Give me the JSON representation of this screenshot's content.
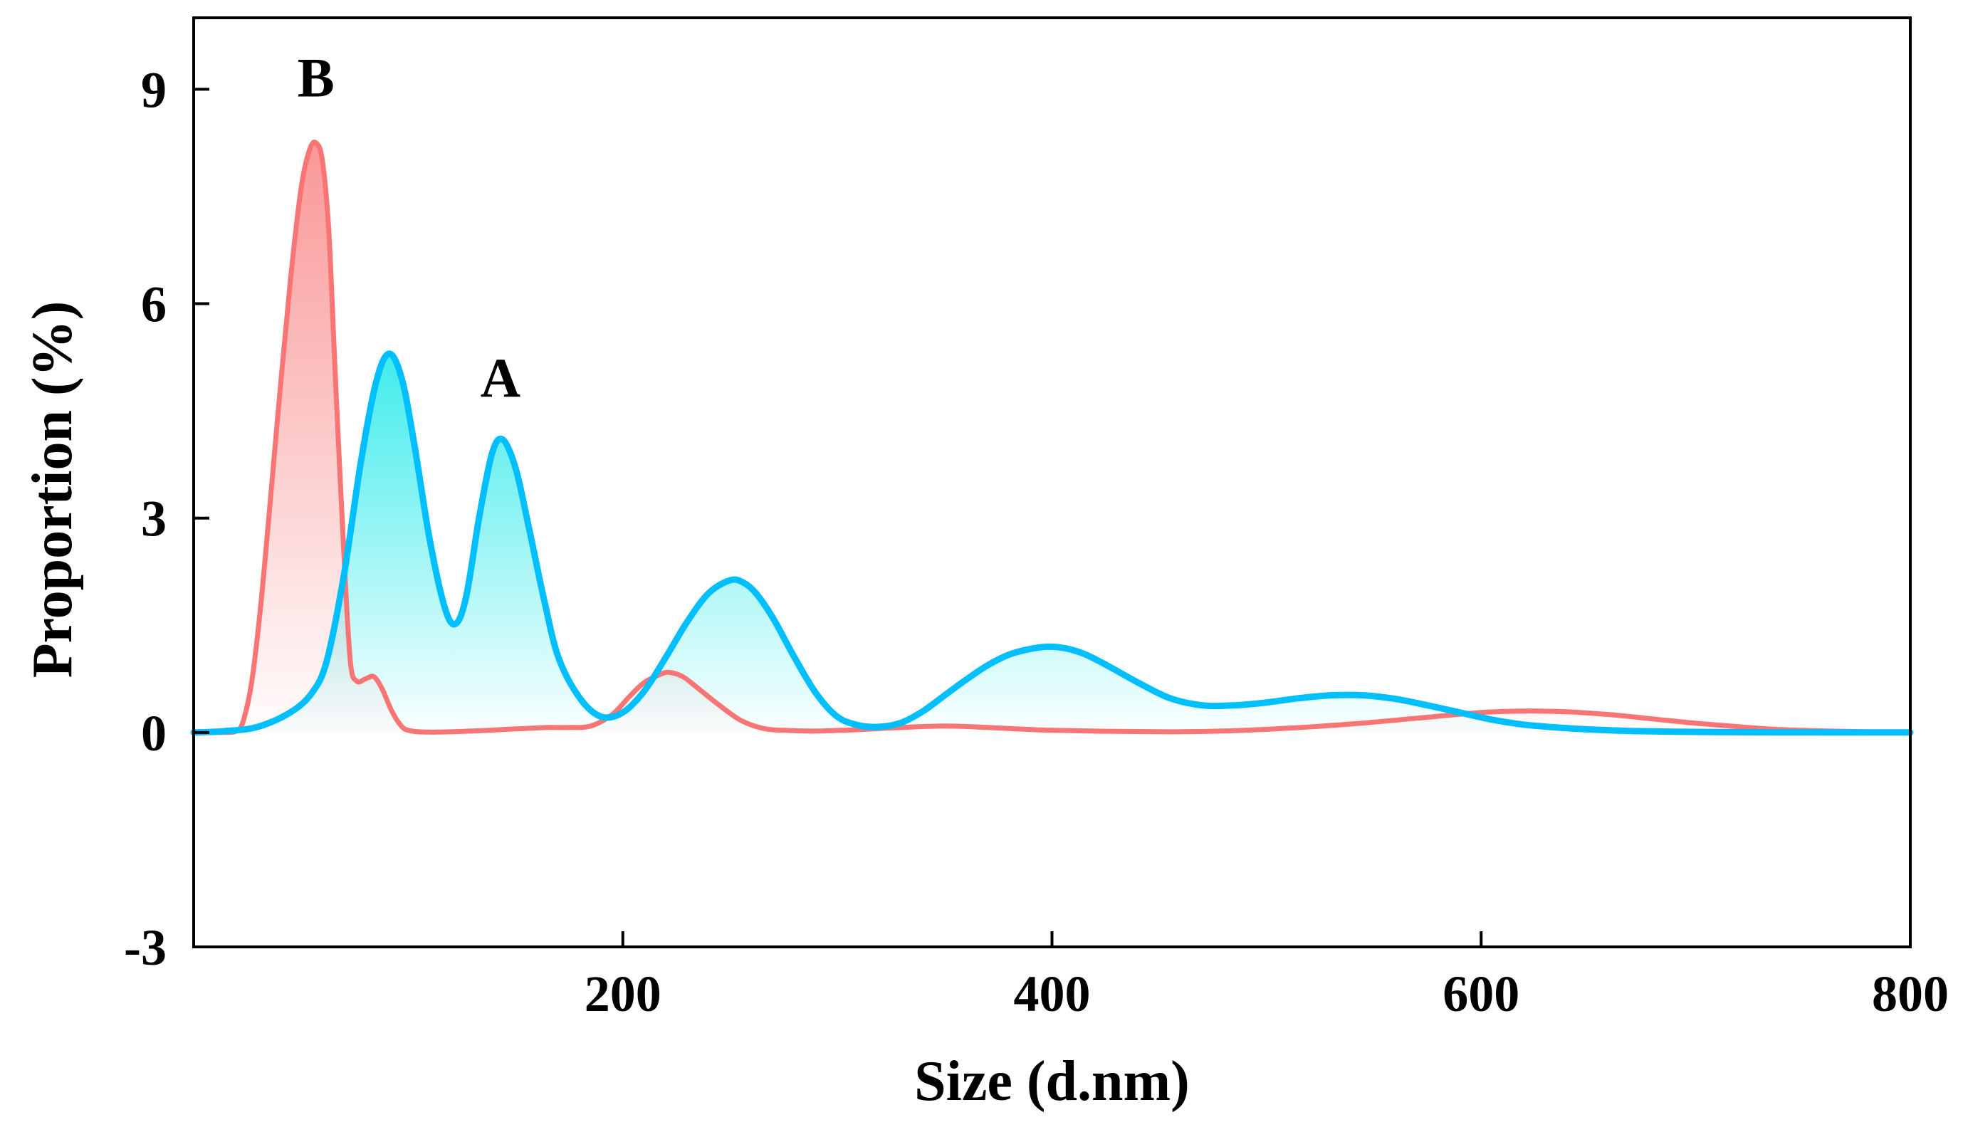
{
  "chart_data": {
    "type": "area",
    "title": "",
    "xlabel": "Size (d.nm)",
    "ylabel": "Proportion (%)",
    "xlim": [
      0,
      800
    ],
    "ylim": [
      -3,
      10
    ],
    "xticks": [
      200,
      400,
      600,
      800
    ],
    "xtick_labels": [
      "200",
      "400",
      "600",
      "800"
    ],
    "yticks": [
      -3,
      0,
      3,
      6,
      9
    ],
    "ytick_labels": [
      "-3",
      "0",
      "3",
      "6",
      "9"
    ],
    "grid": false,
    "legend": "none",
    "annotations": [
      {
        "text": "B",
        "x": 57,
        "y": 8.9,
        "series": "B"
      },
      {
        "text": "A",
        "x": 143,
        "y": 4.7,
        "series": "A"
      }
    ],
    "series": [
      {
        "name": "A",
        "color": "#00BFFF",
        "fill_color": "#00E5E5",
        "x": [
          0,
          15,
          30,
          45,
          55,
          62,
          70,
          78,
          85,
          91,
          97,
          103,
          110,
          117,
          122,
          127,
          133,
          139,
          144,
          150,
          156,
          163,
          170,
          180,
          190,
          200,
          210,
          220,
          230,
          240,
          250,
          256,
          262,
          270,
          280,
          290,
          300,
          310,
          320,
          330,
          340,
          350,
          360,
          370,
          380,
          390,
          398,
          406,
          415,
          425,
          440,
          455,
          470,
          485,
          500,
          515,
          530,
          545,
          560,
          575,
          590,
          605,
          620,
          640,
          660,
          680,
          700,
          730,
          760,
          800
        ],
        "y": [
          0,
          0.02,
          0.08,
          0.28,
          0.55,
          1.0,
          2.2,
          3.8,
          4.9,
          5.3,
          4.95,
          4.0,
          2.7,
          1.75,
          1.52,
          1.9,
          3.0,
          3.9,
          4.1,
          3.7,
          2.9,
          1.9,
          1.05,
          0.48,
          0.22,
          0.28,
          0.58,
          1.05,
          1.55,
          1.95,
          2.13,
          2.1,
          1.95,
          1.6,
          1.05,
          0.55,
          0.22,
          0.1,
          0.08,
          0.14,
          0.3,
          0.52,
          0.74,
          0.94,
          1.09,
          1.17,
          1.2,
          1.18,
          1.1,
          0.95,
          0.7,
          0.48,
          0.38,
          0.38,
          0.42,
          0.48,
          0.52,
          0.52,
          0.47,
          0.38,
          0.28,
          0.18,
          0.11,
          0.06,
          0.03,
          0.015,
          0.008,
          0.003,
          0.001,
          0
        ]
      },
      {
        "name": "B",
        "color": "#F87575",
        "fill_color": "#F87575",
        "x": [
          0,
          15,
          20,
          23,
          27,
          31,
          35,
          40,
          45,
          50,
          54,
          57,
          60,
          63,
          66,
          70,
          73,
          76,
          80,
          84,
          88,
          92,
          96,
          100,
          110,
          130,
          150,
          165,
          175,
          185,
          195,
          203,
          210,
          218,
          222,
          228,
          235,
          245,
          255,
          265,
          275,
          290,
          310,
          330,
          350,
          370,
          400,
          450,
          480,
          510,
          540,
          570,
          600,
          620,
          640,
          660,
          680,
          700,
          720,
          740,
          770,
          800
        ],
        "y": [
          0,
          0,
          0.02,
          0.15,
          0.7,
          1.7,
          3.0,
          4.7,
          6.3,
          7.6,
          8.15,
          8.25,
          8.0,
          7.0,
          5.0,
          2.5,
          1.0,
          0.72,
          0.75,
          0.78,
          0.6,
          0.32,
          0.12,
          0.03,
          0.005,
          0.02,
          0.05,
          0.07,
          0.07,
          0.09,
          0.25,
          0.5,
          0.7,
          0.82,
          0.84,
          0.78,
          0.62,
          0.38,
          0.17,
          0.06,
          0.03,
          0.02,
          0.04,
          0.07,
          0.09,
          0.07,
          0.03,
          0.01,
          0.02,
          0.06,
          0.12,
          0.2,
          0.28,
          0.3,
          0.29,
          0.25,
          0.19,
          0.13,
          0.08,
          0.04,
          0.015,
          0
        ]
      }
    ]
  }
}
